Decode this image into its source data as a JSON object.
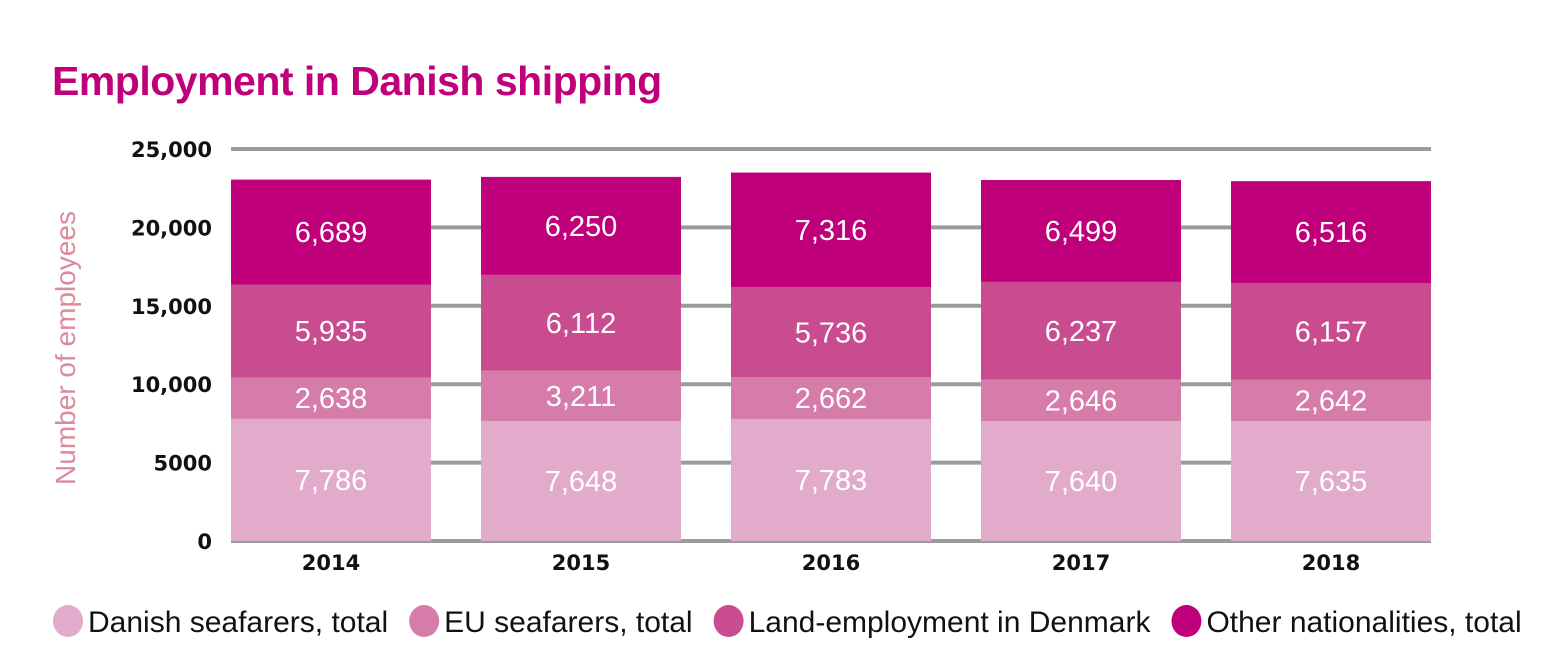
{
  "chart_data": {
    "type": "bar",
    "stacked": true,
    "title": "Employment in Danish shipping",
    "xlabel": "",
    "ylabel": "Number of employees",
    "ylim": [
      0,
      25000
    ],
    "yticks": [
      0,
      5000,
      10000,
      15000,
      20000,
      25000
    ],
    "ytick_labels": [
      "0",
      "5000",
      "10,000",
      "15,000",
      "20,000",
      "25,000"
    ],
    "grid": true,
    "legend_position": "bottom",
    "categories": [
      "2014",
      "2015",
      "2016",
      "2017",
      "2018"
    ],
    "series": [
      {
        "name": "Danish seafarers, total",
        "color": "#e2abcb",
        "values": [
          7786,
          7648,
          7783,
          7640,
          7635
        ],
        "labels": [
          "7,786",
          "7,648",
          "7,783",
          "7,640",
          "7,635"
        ]
      },
      {
        "name": "EU seafarers, total",
        "color": "#d67caa",
        "values": [
          2638,
          3211,
          2662,
          2646,
          2642
        ],
        "labels": [
          "2,638",
          "3,211",
          "2,662",
          "2,646",
          "2,642"
        ]
      },
      {
        "name": "Land-employment in Denmark",
        "color": "#c84c8f",
        "values": [
          5935,
          6112,
          5736,
          6237,
          6157
        ],
        "labels": [
          "5,935",
          "6,112",
          "5,736",
          "6,237",
          "6,157"
        ]
      },
      {
        "name": "Other nationalities, total",
        "color": "#c0007a",
        "values": [
          6689,
          6250,
          7316,
          6499,
          6516
        ],
        "labels": [
          "6,689",
          "6,250",
          "7,316",
          "6,499",
          "6,516"
        ]
      }
    ]
  }
}
